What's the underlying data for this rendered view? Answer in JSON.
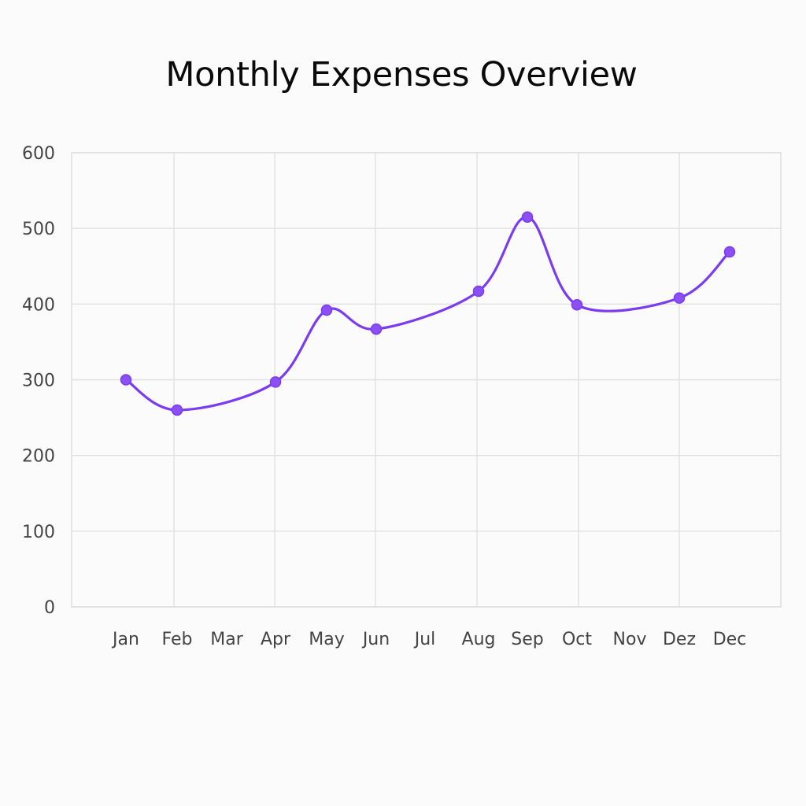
{
  "chart_data": {
    "type": "line",
    "title": "Monthly Expenses Overview",
    "xlabel": "",
    "ylabel": "",
    "categories": [
      "Jan",
      "Feb",
      "Mar",
      "Apr",
      "May",
      "Jun",
      "Jul",
      "Aug",
      "Sep",
      "Oct",
      "Nov",
      "Dez",
      "Dec"
    ],
    "yticks": [
      0,
      100,
      200,
      300,
      400,
      500,
      600
    ],
    "ylim": [
      0,
      600
    ],
    "grid": true,
    "legend": "none",
    "series": [
      {
        "color": "#7a3cf0",
        "points": [
          {
            "x": "Jan",
            "y": 300
          },
          {
            "x": "Feb",
            "y": 260
          },
          {
            "x": "Apr",
            "y": 297
          },
          {
            "x": "May",
            "y": 392
          },
          {
            "x": "Jun",
            "y": 367
          },
          {
            "x": "Aug",
            "y": 417
          },
          {
            "x": "Sep",
            "y": 515
          },
          {
            "x": "Oct",
            "y": 399
          },
          {
            "x": "Dez",
            "y": 408
          },
          {
            "x": "Dec",
            "y": 469
          }
        ]
      }
    ]
  }
}
